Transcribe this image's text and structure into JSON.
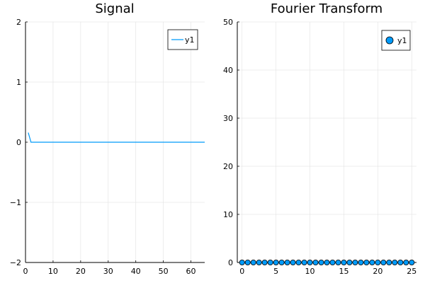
{
  "colors": {
    "series": "#009af9",
    "marker_edge": "#000000",
    "grid": "#e6e6e6"
  },
  "chart_data": [
    {
      "type": "line",
      "title": "Signal",
      "xlabel": "",
      "ylabel": "",
      "xlim": [
        0,
        65
      ],
      "ylim": [
        -2,
        2
      ],
      "xticks": [
        0,
        10,
        20,
        30,
        40,
        50,
        60
      ],
      "yticks": [
        -2,
        -1,
        0,
        1,
        2
      ],
      "x_tick_labels": [
        "0",
        "10",
        "20",
        "30",
        "40",
        "50",
        "60"
      ],
      "y_tick_labels": [
        "−2",
        "−1",
        "0",
        "1",
        "2"
      ],
      "grid": true,
      "legend": {
        "position": "top-right",
        "entries": [
          "y1"
        ]
      },
      "series": [
        {
          "name": "y1",
          "x": [
            1,
            2,
            3,
            4,
            5,
            6,
            7,
            8,
            9,
            10,
            11,
            12,
            13,
            14,
            15,
            16,
            17,
            18,
            19,
            20,
            21,
            22,
            23,
            24,
            25,
            26,
            27,
            28,
            29,
            30,
            31,
            32,
            33,
            34,
            35,
            36,
            37,
            38,
            39,
            40,
            41,
            42,
            43,
            44,
            45,
            46,
            47,
            48,
            49,
            50,
            51,
            52,
            53,
            54,
            55,
            56,
            57,
            58,
            59,
            60,
            61,
            62,
            63,
            64,
            65
          ],
          "y": [
            0.16,
            0,
            0,
            0,
            0,
            0,
            0,
            0,
            0,
            0,
            0,
            0,
            0,
            0,
            0,
            0,
            0,
            0,
            0,
            0,
            0,
            0,
            0,
            0,
            0,
            0,
            0,
            0,
            0,
            0,
            0,
            0,
            0,
            0,
            0,
            0,
            0,
            0,
            0,
            0,
            0,
            0,
            0,
            0,
            0,
            0,
            0,
            0,
            0,
            0,
            0,
            0,
            0,
            0,
            0,
            0,
            0,
            0,
            0,
            0,
            0,
            0,
            0,
            0,
            0
          ]
        }
      ]
    },
    {
      "type": "scatter",
      "title": "Fourier Transform",
      "xlabel": "",
      "ylabel": "",
      "xlim": [
        -0.7,
        25.7
      ],
      "ylim": [
        0,
        50
      ],
      "xticks": [
        0,
        5,
        10,
        15,
        20,
        25
      ],
      "yticks": [
        0,
        10,
        20,
        30,
        40,
        50
      ],
      "x_tick_labels": [
        "0",
        "5",
        "10",
        "15",
        "20",
        "25"
      ],
      "y_tick_labels": [
        "0",
        "10",
        "20",
        "30",
        "40",
        "50"
      ],
      "grid": true,
      "legend": {
        "position": "top-right",
        "entries": [
          "y1"
        ]
      },
      "series": [
        {
          "name": "y1",
          "x": [
            0,
            0.833,
            1.667,
            2.5,
            3.333,
            4.167,
            5,
            5.833,
            6.667,
            7.5,
            8.333,
            9.167,
            10,
            10.833,
            11.667,
            12.5,
            13.333,
            14.167,
            15,
            15.833,
            16.667,
            17.5,
            18.333,
            19.167,
            20,
            20.833,
            21.667,
            22.5,
            23.333,
            24.167,
            25
          ],
          "y": [
            0,
            0,
            0,
            0,
            0,
            0,
            0,
            0,
            0,
            0,
            0,
            0,
            0,
            0,
            0,
            0,
            0,
            0,
            0,
            0,
            0,
            0,
            0,
            0,
            0,
            0,
            0,
            0,
            0,
            0,
            0
          ]
        }
      ]
    }
  ]
}
